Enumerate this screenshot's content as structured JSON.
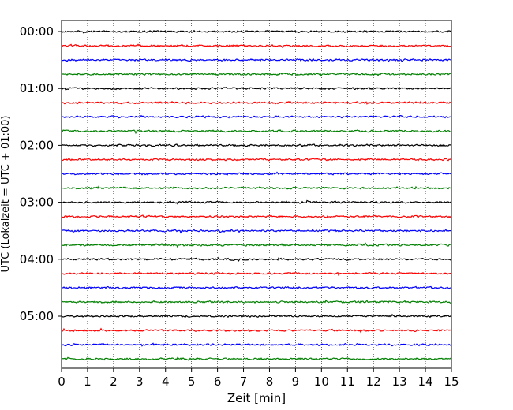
{
  "chart_data": {
    "type": "line",
    "title": "",
    "xlabel": "Zeit  [min]",
    "ylabel": "UTC (Lokalzeit = UTC + 01:00)",
    "xlim": [
      0,
      15
    ],
    "x_ticks": [
      "0",
      "1",
      "2",
      "3",
      "4",
      "5",
      "6",
      "7",
      "8",
      "9",
      "10",
      "11",
      "12",
      "13",
      "14",
      "15"
    ],
    "y_ticks": [
      {
        "label": "00:00",
        "trace_index": 0
      },
      {
        "label": "01:00",
        "trace_index": 4
      },
      {
        "label": "02:00",
        "trace_index": 8
      },
      {
        "label": "03:00",
        "trace_index": 12
      },
      {
        "label": "04:00",
        "trace_index": 16
      },
      {
        "label": "05:00",
        "trace_index": 20
      }
    ],
    "trace_interval_min": 15,
    "trace_count": 24,
    "trace_colors": [
      "#000000",
      "#ff0000",
      "#0000ff",
      "#008000"
    ],
    "grid": "vertical dotted at each minute",
    "legend": "none"
  }
}
